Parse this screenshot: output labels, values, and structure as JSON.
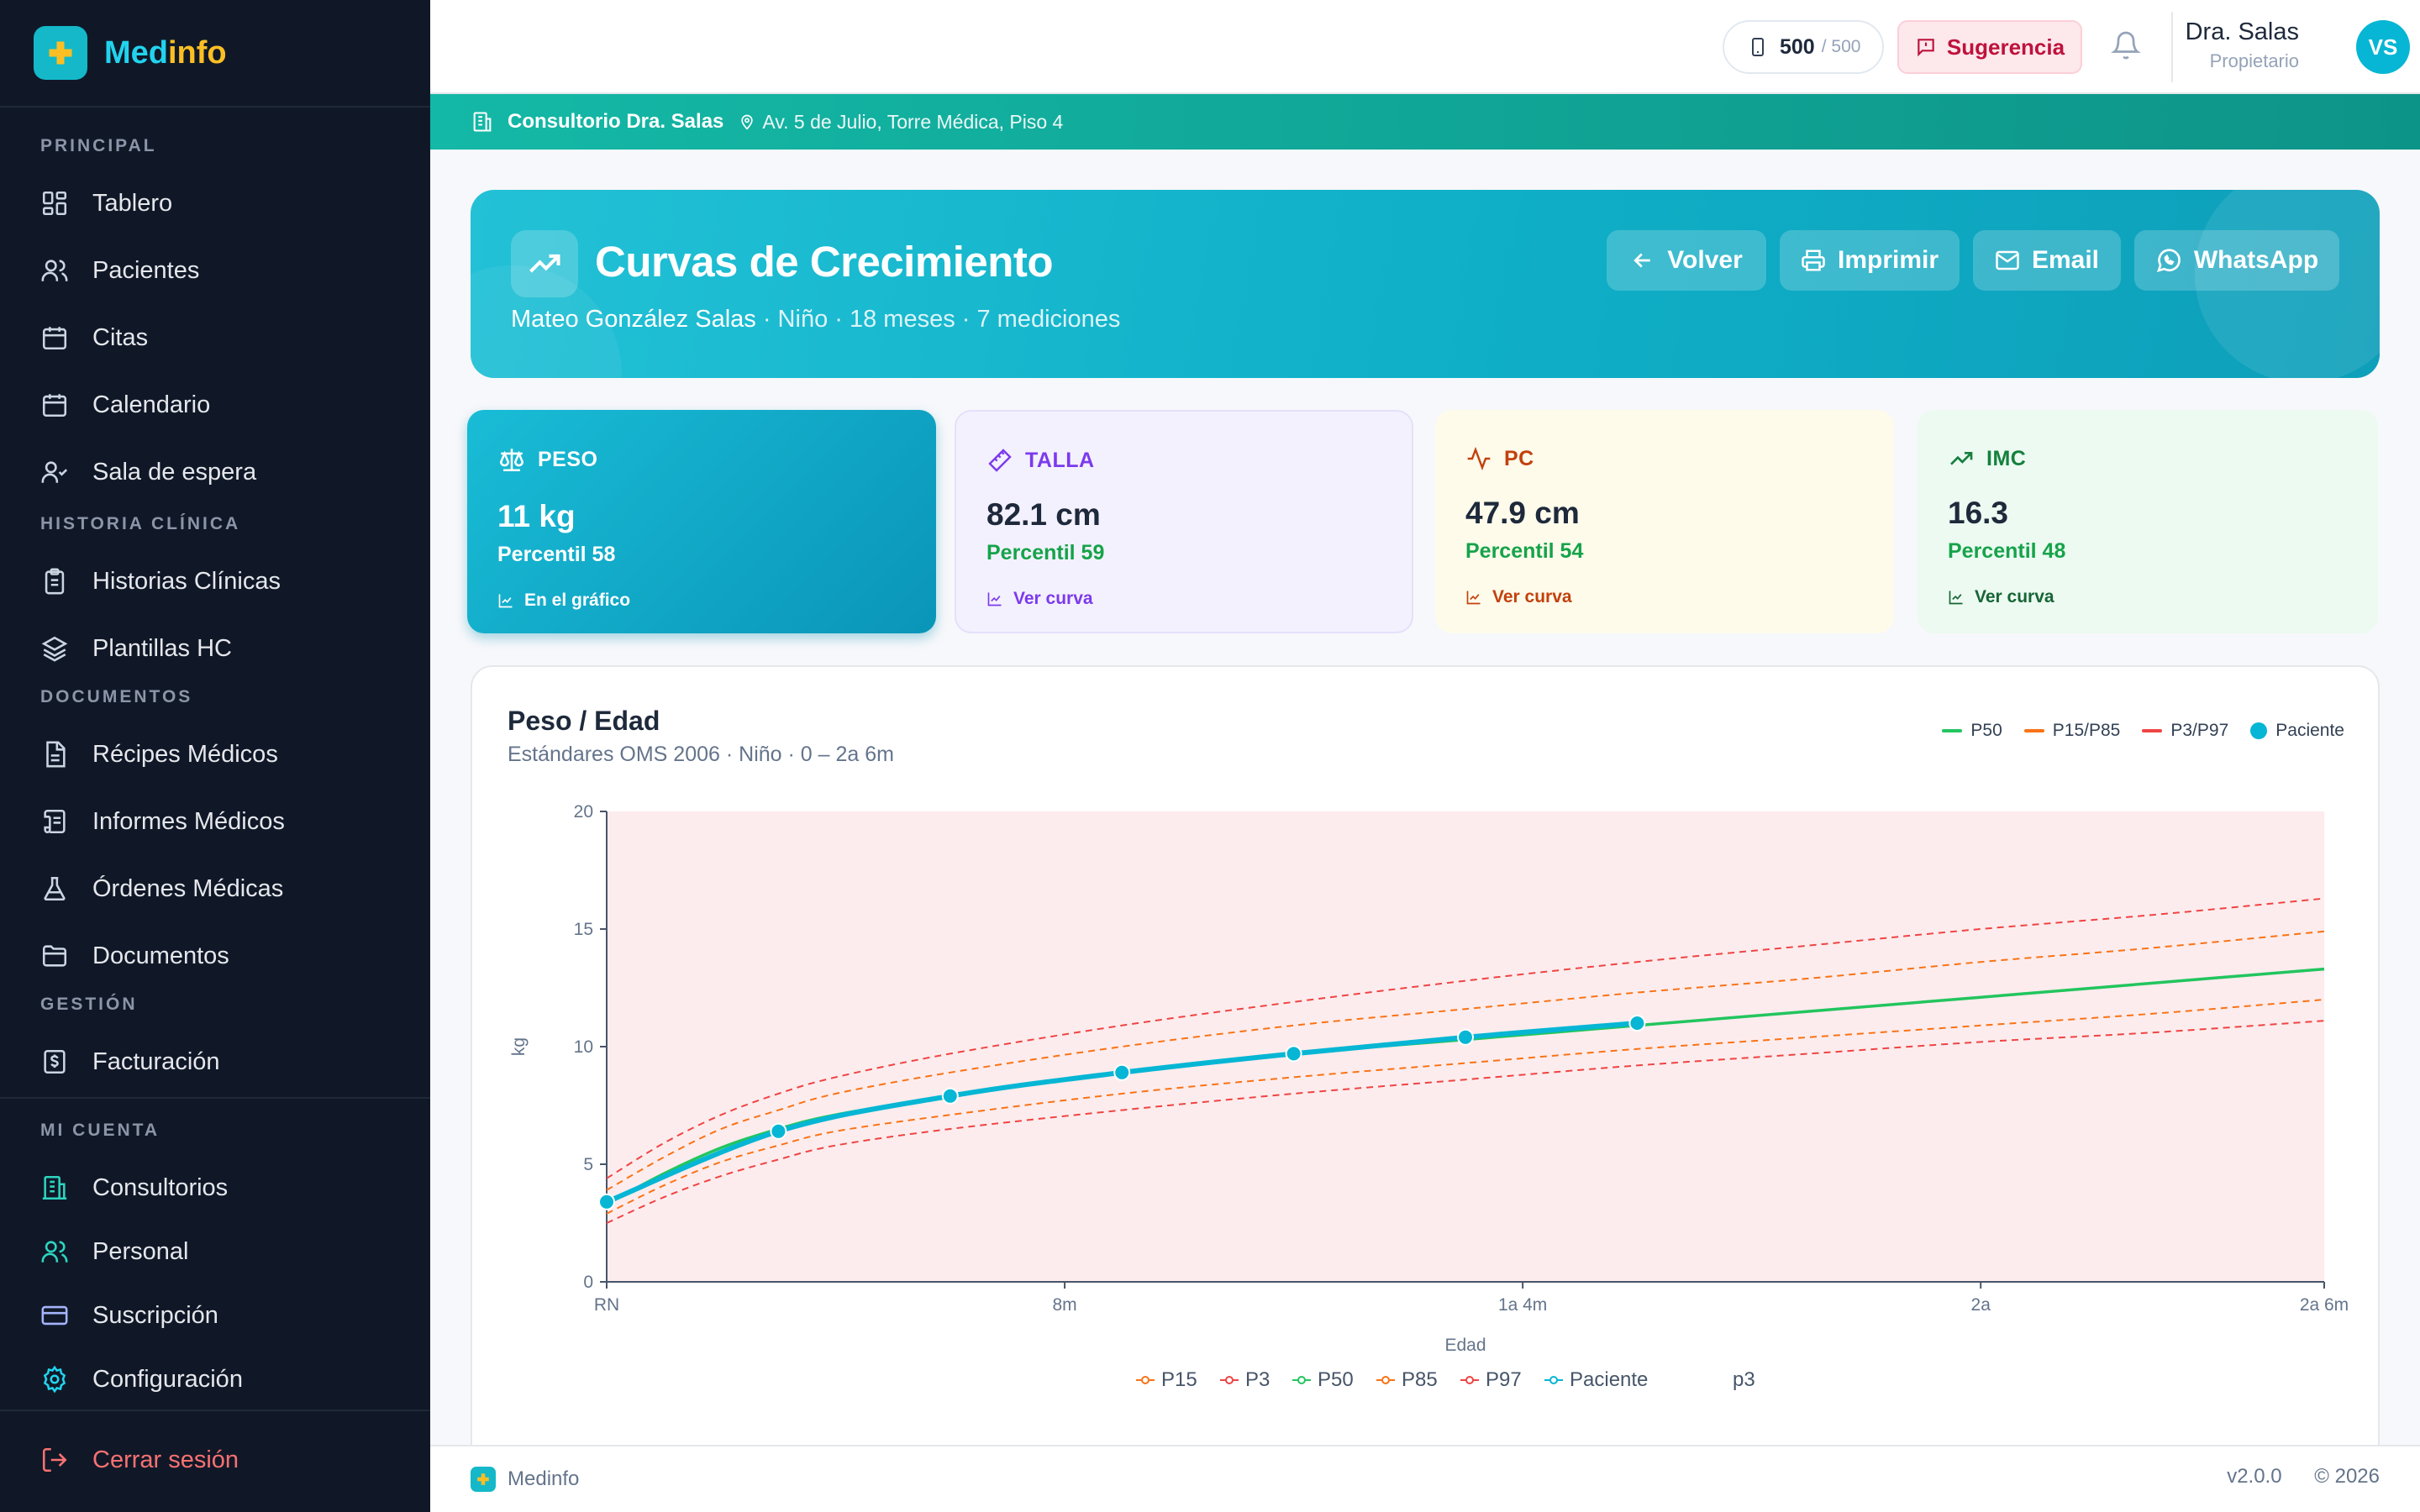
{
  "app": {
    "name_a": "Med",
    "name_b": "info"
  },
  "sidebar": {
    "sections": {
      "principal": "PRINCIPAL",
      "historia": "HISTORIA CLÍNICA",
      "documentos": "DOCUMENTOS",
      "gestion": "GESTIÓN",
      "cuenta": "MI CUENTA"
    },
    "items": {
      "tablero": "Tablero",
      "pacientes": "Pacientes",
      "citas": "Citas",
      "calendario": "Calendario",
      "sala": "Sala de espera",
      "historias": "Historias Clínicas",
      "plantillas": "Plantillas HC",
      "recipes": "Récipes Médicos",
      "informes": "Informes Médicos",
      "ordenes": "Órdenes Médicas",
      "documentos": "Documentos",
      "facturacion": "Facturación",
      "consultorios": "Consultorios",
      "personal": "Personal",
      "suscripcion": "Suscripción",
      "configuracion": "Configuración"
    },
    "logout": "Cerrar sesión"
  },
  "header": {
    "credits_value": "500",
    "credits_max": "/ 500",
    "suggestion": "Sugerencia",
    "user_name": "Dra. Salas",
    "user_role": "Propietario",
    "avatar_initials": "VS"
  },
  "clinic": {
    "name": "Consultorio Dra. Salas",
    "address": "Av. 5 de Julio, Torre Médica, Piso 4"
  },
  "hero": {
    "title": "Curvas de Crecimiento",
    "patient": "Mateo González Salas",
    "details": " · Niño · 18 meses · 7 mediciones",
    "buttons": {
      "back": "Volver",
      "print": "Imprimir",
      "email": "Email",
      "whatsapp": "WhatsApp"
    }
  },
  "metrics": {
    "peso": {
      "label": "PESO",
      "value": "11 kg",
      "percentile": "Percentil 58",
      "link": "En el gráfico"
    },
    "talla": {
      "label": "TALLA",
      "value": "82.1 cm",
      "percentile": "Percentil 59",
      "link": "Ver curva"
    },
    "pc": {
      "label": "PC",
      "value": "47.9 cm",
      "percentile": "Percentil 54",
      "link": "Ver curva"
    },
    "imc": {
      "label": "IMC",
      "value": "16.3",
      "percentile": "Percentil 48",
      "link": "Ver curva"
    }
  },
  "panel": {
    "title": "Peso / Edad",
    "subtitle": "Estándares OMS 2006 · Niño · 0 – 2a 6m",
    "legend": {
      "p50": "P50",
      "p15p85": "P15/P85",
      "p3p97": "P3/P97",
      "patient": "Paciente"
    }
  },
  "chart_data": {
    "type": "line",
    "xlabel": "Edad",
    "ylabel": "kg",
    "xlim": [
      0,
      30
    ],
    "ylim": [
      0,
      20
    ],
    "x_ticks": [
      {
        "x": 0,
        "label": "RN"
      },
      {
        "x": 8,
        "label": "8m"
      },
      {
        "x": 16,
        "label": "1a 4m"
      },
      {
        "x": 24,
        "label": "2a"
      },
      {
        "x": 30,
        "label": "2a 6m"
      }
    ],
    "y_ticks": [
      0,
      5,
      10,
      15,
      20
    ],
    "x": [
      0,
      1,
      2,
      3,
      4,
      6,
      9,
      12,
      15,
      18,
      21,
      24,
      27,
      30
    ],
    "series": [
      {
        "name": "P15",
        "color": "#f97316",
        "dash": true,
        "values": [
          2.9,
          4.1,
          5.1,
          5.8,
          6.4,
          7.1,
          8.0,
          8.7,
          9.3,
          9.9,
          10.4,
          10.9,
          11.4,
          12.0
        ]
      },
      {
        "name": "P3",
        "color": "#ef4444",
        "dash": true,
        "values": [
          2.5,
          3.6,
          4.5,
          5.2,
          5.8,
          6.5,
          7.3,
          8.0,
          8.6,
          9.2,
          9.7,
          10.2,
          10.6,
          11.1
        ]
      },
      {
        "name": "P50",
        "color": "#22c55e",
        "dash": false,
        "values": [
          3.3,
          4.6,
          5.7,
          6.5,
          7.1,
          7.9,
          8.9,
          9.7,
          10.3,
          10.9,
          11.5,
          12.1,
          12.7,
          13.3
        ]
      },
      {
        "name": "P85",
        "color": "#f97316",
        "dash": true,
        "values": [
          3.9,
          5.3,
          6.5,
          7.3,
          8.0,
          8.9,
          10.0,
          10.9,
          11.6,
          12.3,
          12.9,
          13.6,
          14.2,
          14.9
        ]
      },
      {
        "name": "P97",
        "color": "#ef4444",
        "dash": true,
        "values": [
          4.4,
          5.9,
          7.1,
          8.0,
          8.7,
          9.7,
          10.9,
          11.9,
          12.8,
          13.6,
          14.3,
          15.0,
          15.6,
          16.3
        ]
      },
      {
        "name": "Paciente",
        "color": "#06b6d4",
        "dash": false,
        "points": [
          [
            0,
            3.4
          ],
          [
            3,
            6.4
          ],
          [
            6,
            7.9
          ],
          [
            9,
            8.9
          ],
          [
            12,
            9.7
          ],
          [
            15,
            10.4
          ],
          [
            18,
            11.0
          ]
        ]
      }
    ],
    "bottom_legend": [
      "P15",
      "P3",
      "P50",
      "P85",
      "P97",
      "Paciente",
      "p3"
    ]
  },
  "footer": {
    "brand": "Medinfo",
    "version": "v2.0.0",
    "year": "© 2026"
  }
}
